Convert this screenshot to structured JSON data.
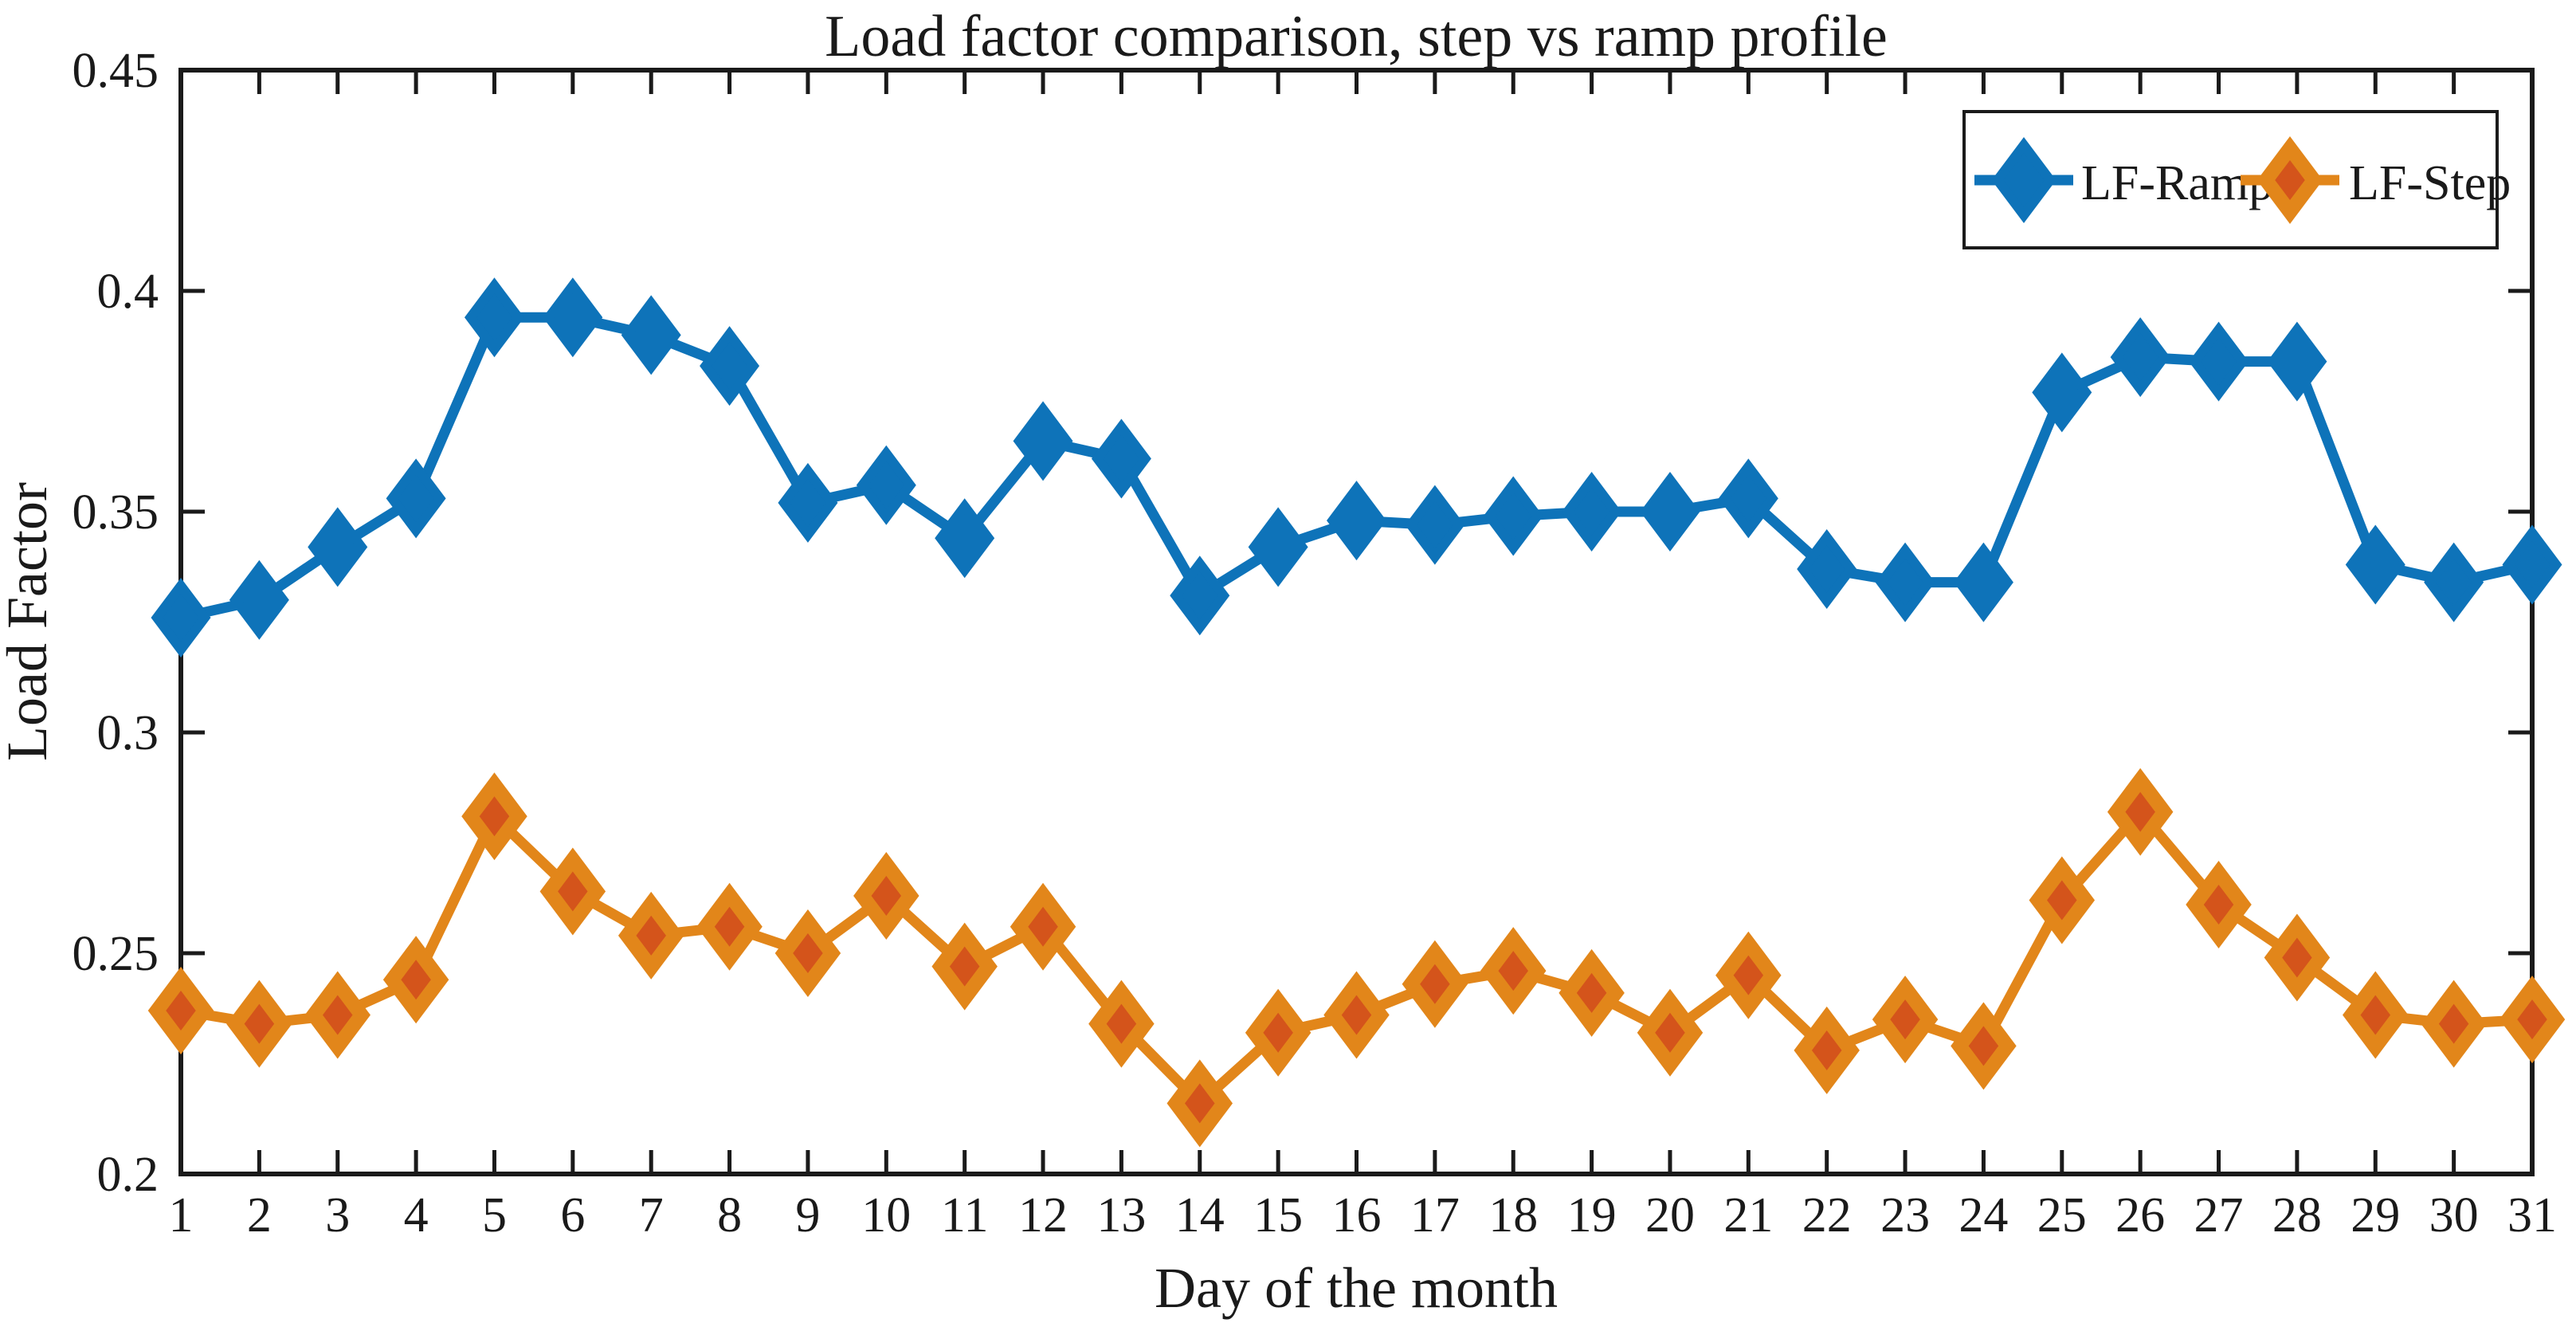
{
  "chart_data": {
    "type": "line",
    "title": "Load factor comparison, step vs ramp profile",
    "xlabel": "Day of the month",
    "ylabel": "Load Factor",
    "grid": "off",
    "legend_position": "top-right-inside",
    "axis_color": "#1a1a1a",
    "background": "#ffffff",
    "xlim": [
      1,
      31
    ],
    "ylim": [
      0.2,
      0.45
    ],
    "x": [
      1,
      2,
      3,
      4,
      5,
      6,
      7,
      8,
      9,
      10,
      11,
      12,
      13,
      14,
      15,
      16,
      17,
      18,
      19,
      20,
      21,
      22,
      23,
      24,
      25,
      26,
      27,
      28,
      29,
      30,
      31
    ],
    "x_tick_labels": [
      "1",
      "2",
      "3",
      "4",
      "5",
      "6",
      "7",
      "8",
      "9",
      "10",
      "11",
      "12",
      "13",
      "14",
      "15",
      "16",
      "17",
      "18",
      "19",
      "20",
      "21",
      "22",
      "23",
      "24",
      "25",
      "26",
      "27",
      "28",
      "29",
      "30",
      "31"
    ],
    "y_ticks": [
      0.2,
      0.25,
      0.3,
      0.35,
      0.4,
      0.45
    ],
    "y_tick_labels": [
      "0.2",
      "0.25",
      "0.3",
      "0.35",
      "0.4",
      "0.45"
    ],
    "series": [
      {
        "name": "LF-Ramp",
        "color": "#0e73b9",
        "marker": "diamond",
        "marker_face": "#0e73b9",
        "marker_edge": "#0e73b9",
        "values": [
          0.326,
          0.33,
          0.342,
          0.353,
          0.394,
          0.394,
          0.39,
          0.383,
          0.352,
          0.356,
          0.344,
          0.366,
          0.362,
          0.331,
          0.342,
          0.348,
          0.347,
          0.349,
          0.35,
          0.35,
          0.353,
          0.337,
          0.334,
          0.334,
          0.377,
          0.385,
          0.384,
          0.384,
          0.338,
          0.334,
          0.338
        ]
      },
      {
        "name": "LF-Step",
        "color": "#e2861a",
        "marker": "diamond",
        "marker_face": "#d4541b",
        "marker_edge": "#e2861a",
        "values": [
          0.237,
          0.234,
          0.236,
          0.244,
          0.281,
          0.264,
          0.254,
          0.256,
          0.25,
          0.263,
          0.247,
          0.256,
          0.234,
          0.216,
          0.232,
          0.236,
          0.243,
          0.246,
          0.241,
          0.232,
          0.245,
          0.228,
          0.235,
          0.229,
          0.262,
          0.282,
          0.261,
          0.249,
          0.236,
          0.234,
          0.235
        ]
      }
    ]
  }
}
